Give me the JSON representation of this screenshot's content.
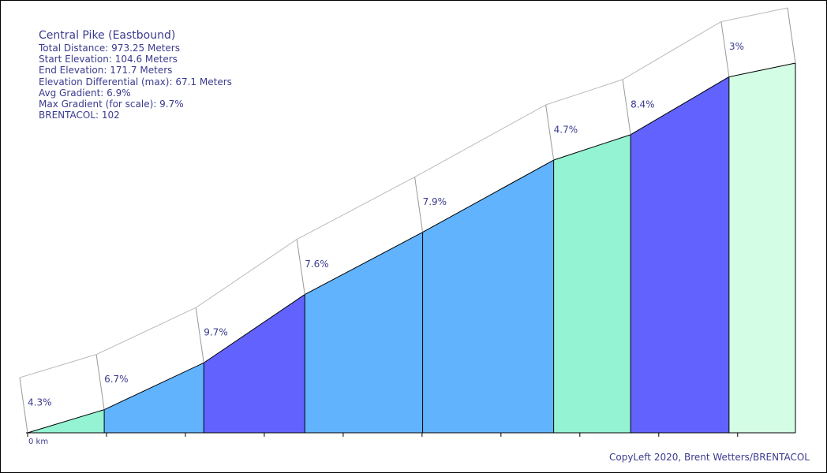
{
  "info": {
    "title": "Central Pike (Eastbound)",
    "total_distance": "Total Distance: 973.25 Meters",
    "start_elevation": "Start Elevation: 104.6 Meters",
    "end_elevation": "End Elevation: 171.7 Meters",
    "elevation_differential": "Elevation Differential (max): 67.1 Meters",
    "avg_gradient": "Avg Gradient: 6.9%",
    "max_gradient": "Max Gradient (for scale): 9.7%",
    "brentacol": "BRENTACOL: 102"
  },
  "footer": {
    "copyleft": "CopyLeft 2020, Brent Wetters/BRENTACOL"
  },
  "chart_data": {
    "type": "area",
    "x_tick_label": "0 km",
    "x_range": [
      0,
      973.25
    ],
    "y_range": [
      104.6,
      171.7
    ],
    "segments": [
      {
        "start_m": 0,
        "end_m": 97.1,
        "start_elev": 104.6,
        "end_elev": 108.8,
        "gradient_label": "4.3%",
        "color": "#93f3d3"
      },
      {
        "start_m": 97.1,
        "end_m": 223.3,
        "start_elev": 108.8,
        "end_elev": 117.3,
        "gradient_label": "6.7%",
        "color": "#61b3fe"
      },
      {
        "start_m": 223.3,
        "end_m": 351.3,
        "start_elev": 117.3,
        "end_elev": 129.7,
        "gradient_label": "9.7%",
        "color": "#6262fe"
      },
      {
        "start_m": 351.3,
        "end_m": 500.7,
        "start_elev": 129.7,
        "end_elev": 141.0,
        "gradient_label": "7.6%",
        "color": "#61b3fe"
      },
      {
        "start_m": 500.7,
        "end_m": 666.8,
        "start_elev": 141.0,
        "end_elev": 154.1,
        "gradient_label": "7.9%",
        "color": "#61b3fe"
      },
      {
        "start_m": 666.8,
        "end_m": 764.3,
        "start_elev": 154.1,
        "end_elev": 158.7,
        "gradient_label": "4.7%",
        "color": "#93f3d3"
      },
      {
        "start_m": 764.3,
        "end_m": 889.1,
        "start_elev": 158.7,
        "end_elev": 169.2,
        "gradient_label": "8.4%",
        "color": "#6262fe"
      },
      {
        "start_m": 889.1,
        "end_m": 973.25,
        "start_elev": 169.2,
        "end_elev": 171.7,
        "gradient_label": "3%",
        "color": "#d3fde5"
      }
    ]
  }
}
